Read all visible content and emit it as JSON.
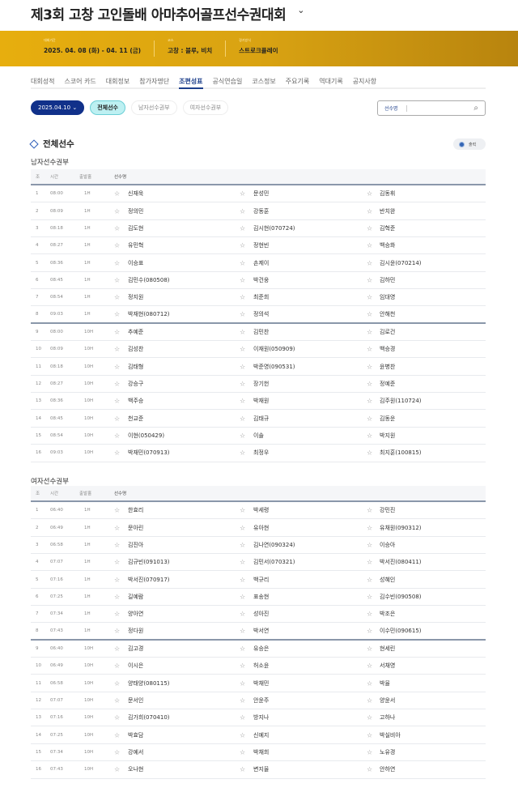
{
  "title": "제3회 고창 고인돌배 아마추어골프선수권대회",
  "info": [
    {
      "label": "대회기간",
      "value": "2025. 04. 08 (화) - 04. 11 (금)"
    },
    {
      "label": "코스",
      "value": "고창 : 블루, 비치"
    },
    {
      "label": "경기방식",
      "value": "스트로크플레이"
    }
  ],
  "nav": [
    "대회성적",
    "스코어 카드",
    "대회정보",
    "참가자명단",
    "조편성표",
    "공식연습일",
    "코스정보",
    "주요기록",
    "역대기록",
    "공지사항"
  ],
  "nav_active": "조편성표",
  "filters": {
    "date": "2025.04.10",
    "all": "전체선수",
    "men": "남자선수권부",
    "women": "여자선수권부"
  },
  "search": {
    "placeholder": "선수명"
  },
  "section_title": "전체선수",
  "print_label": "출력",
  "columns": {
    "group": "조",
    "time": "시간",
    "hole": "출발홀",
    "player": "선수명"
  },
  "men": {
    "title": "남자선수권부",
    "rows": [
      [
        "1",
        "08:00",
        "1H",
        "신재욱",
        "문성민",
        "김동휘"
      ],
      [
        "2",
        "08:09",
        "1H",
        "정의민",
        "강동훈",
        "반치완"
      ],
      [
        "3",
        "08:18",
        "1H",
        "김도현",
        "김시현(070724)",
        "김혁준"
      ],
      [
        "4",
        "08:27",
        "1H",
        "유민혁",
        "정현빈",
        "백승화"
      ],
      [
        "5",
        "08:36",
        "1H",
        "이승표",
        "손제이",
        "김시윤(070214)"
      ],
      [
        "6",
        "08:45",
        "1H",
        "김민수(080508)",
        "박건웅",
        "김하민"
      ],
      [
        "7",
        "08:54",
        "1H",
        "정지원",
        "최준희",
        "임대영"
      ],
      [
        "8",
        "09:03",
        "1H",
        "박재현(080712)",
        "정의석",
        "안해천"
      ],
      [
        "9",
        "08:00",
        "10H",
        "추예준",
        "김민찬",
        "김로건"
      ],
      [
        "10",
        "08:09",
        "10H",
        "김성찬",
        "이재원(050909)",
        "백승경"
      ],
      [
        "11",
        "08:18",
        "10H",
        "김태형",
        "박준영(090531)",
        "윤병찬"
      ],
      [
        "12",
        "08:27",
        "10H",
        "강승구",
        "장기헌",
        "정예준"
      ],
      [
        "13",
        "08:36",
        "10H",
        "백주승",
        "박재원",
        "김주원(110724)"
      ],
      [
        "14",
        "08:45",
        "10H",
        "천교준",
        "김태규",
        "김동운"
      ],
      [
        "15",
        "08:54",
        "10H",
        "이현(050429)",
        "이솔",
        "박지원"
      ],
      [
        "16",
        "09:03",
        "10H",
        "박재민(070913)",
        "최정우",
        "최지훈(100815)"
      ]
    ]
  },
  "women": {
    "title": "여자선수권부",
    "rows": [
      [
        "1",
        "06:40",
        "1H",
        "한효리",
        "박세령",
        "강민진"
      ],
      [
        "2",
        "06:49",
        "1H",
        "문아린",
        "유아현",
        "유채원(090312)"
      ],
      [
        "3",
        "06:58",
        "1H",
        "김진아",
        "김나연(090324)",
        "이승아"
      ],
      [
        "4",
        "07:07",
        "1H",
        "김규빈(091013)",
        "김민서(070321)",
        "박서진(080411)"
      ],
      [
        "5",
        "07:16",
        "1H",
        "박서진(070917)",
        "백규리",
        "성혜인"
      ],
      [
        "6",
        "07:25",
        "1H",
        "길예람",
        "표송현",
        "김수빈(090508)"
      ],
      [
        "7",
        "07:34",
        "1H",
        "양아연",
        "성아진",
        "박조은"
      ],
      [
        "8",
        "07:43",
        "1H",
        "정다원",
        "박서연",
        "이수민(090615)"
      ],
      [
        "9",
        "06:40",
        "10H",
        "김고경",
        "유승은",
        "현세린"
      ],
      [
        "10",
        "06:49",
        "10H",
        "이시은",
        "허소윤",
        "서채영"
      ],
      [
        "11",
        "06:58",
        "10H",
        "양태양(080115)",
        "박채민",
        "박율"
      ],
      [
        "12",
        "07:07",
        "10H",
        "문서인",
        "안윤주",
        "양윤서"
      ],
      [
        "13",
        "07:16",
        "10H",
        "김가희(070410)",
        "방지나",
        "고하나"
      ],
      [
        "14",
        "07:25",
        "10H",
        "박효담",
        "신예지",
        "박실비아"
      ],
      [
        "15",
        "07:34",
        "10H",
        "강예서",
        "박채희",
        "노유경"
      ],
      [
        "16",
        "07:43",
        "10H",
        "오나현",
        "변지율",
        "안하연"
      ]
    ]
  },
  "colors": {
    "accent": "#11318a",
    "band": "#d9a312",
    "active_filter": "#bdf0f2"
  }
}
